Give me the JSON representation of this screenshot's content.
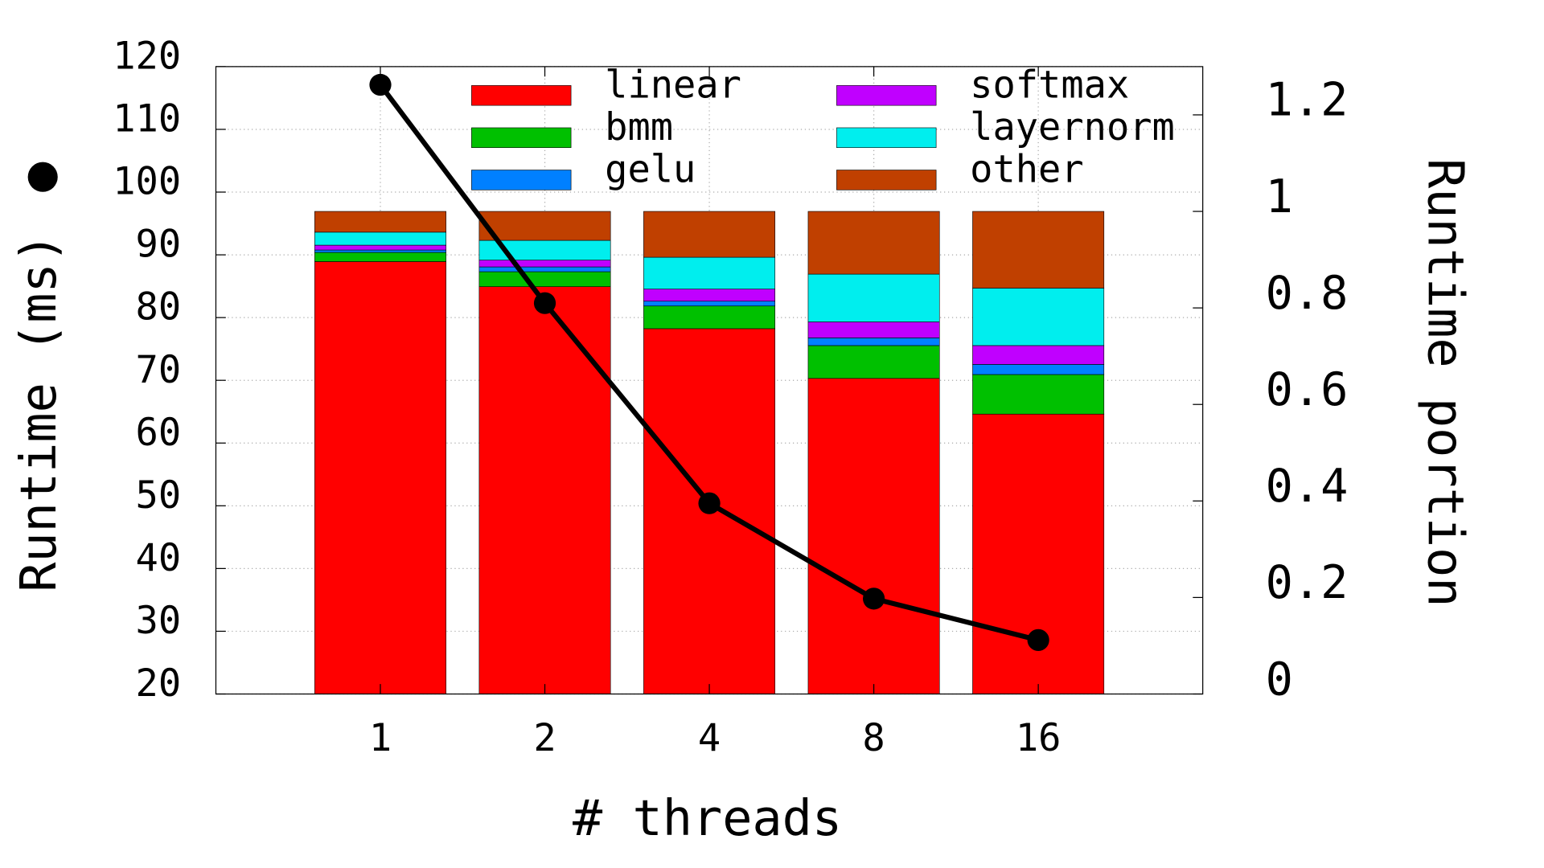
{
  "chart_data": {
    "type": "bar",
    "stacked": true,
    "x_label": "# threads",
    "y_label": "Runtime (ms)",
    "y2_label": "Runtime portion",
    "categories": [
      "1",
      "2",
      "4",
      "8",
      "16"
    ],
    "ylim": [
      20,
      120
    ],
    "yticks": [
      20,
      30,
      40,
      50,
      60,
      70,
      80,
      90,
      100,
      110,
      120
    ],
    "y2lim": [
      0,
      1.3
    ],
    "y2ticks": [
      0,
      0.2,
      0.4,
      0.6,
      0.8,
      1,
      1.2
    ],
    "grid": true,
    "series": [
      {
        "name": "linear",
        "color": "#ff0000",
        "axis": "y2",
        "values": [
          0.896,
          0.844,
          0.757,
          0.654,
          0.58
        ]
      },
      {
        "name": "bmm",
        "color": "#00c000",
        "axis": "y2",
        "values": [
          0.019,
          0.031,
          0.047,
          0.068,
          0.082
        ]
      },
      {
        "name": "gelu",
        "color": "#0080ff",
        "axis": "y2",
        "values": [
          0.005,
          0.01,
          0.01,
          0.016,
          0.021
        ]
      },
      {
        "name": "softmax",
        "color": "#c000ff",
        "axis": "y2",
        "values": [
          0.01,
          0.014,
          0.025,
          0.033,
          0.039
        ]
      },
      {
        "name": "layernorm",
        "color": "#00eeee",
        "axis": "y2",
        "values": [
          0.027,
          0.041,
          0.066,
          0.099,
          0.119
        ]
      },
      {
        "name": "other",
        "color": "#c04000",
        "axis": "y2",
        "values": [
          0.043,
          0.06,
          0.095,
          0.13,
          0.159
        ]
      },
      {
        "type": "line",
        "color": "#000000",
        "values": [
          117.1,
          82.3,
          50.4,
          35.2,
          28.6
        ]
      }
    ]
  }
}
